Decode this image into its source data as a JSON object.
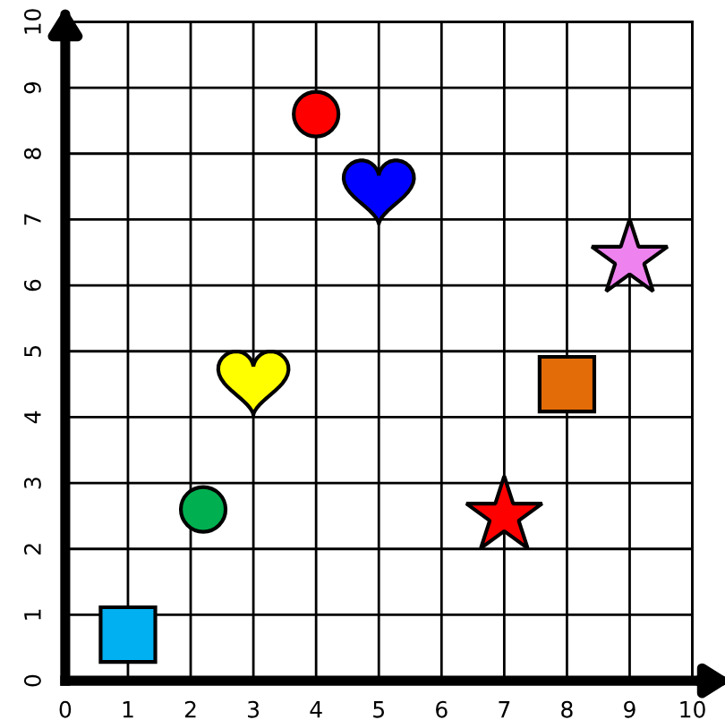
{
  "chart_data": {
    "type": "scatter",
    "xlim": [
      0,
      10
    ],
    "ylim": [
      0,
      10
    ],
    "xticks": [
      0,
      1,
      2,
      3,
      4,
      5,
      6,
      7,
      8,
      9,
      10
    ],
    "yticks": [
      0,
      1,
      2,
      3,
      4,
      5,
      6,
      7,
      8,
      9,
      10
    ],
    "grid": true,
    "series": [
      {
        "color": "#00b0f0",
        "marker": "square",
        "x": [
          1
        ],
        "values": [
          0.7
        ]
      },
      {
        "color": "#00b050",
        "marker": "circle",
        "x": [
          2.2
        ],
        "values": [
          2.6
        ]
      },
      {
        "color": "#ffff00",
        "x": [
          3
        ],
        "values": [
          4.6
        ]
      },
      {
        "color": "#ff0000",
        "marker": "circle",
        "x": [
          4
        ],
        "values": [
          8.6
        ]
      },
      {
        "color": "#0000ff",
        "x": [
          5
        ],
        "values": [
          7.5
        ]
      },
      {
        "color": "#ff0000",
        "marker": "star",
        "x": [
          7
        ],
        "values": [
          2.5
        ]
      },
      {
        "color": "#e36c09",
        "marker": "square",
        "x": [
          8
        ],
        "values": [
          4.5
        ]
      },
      {
        "color": "#ee82ee",
        "marker": "star",
        "x": [
          9
        ],
        "values": [
          6.4
        ]
      }
    ]
  }
}
